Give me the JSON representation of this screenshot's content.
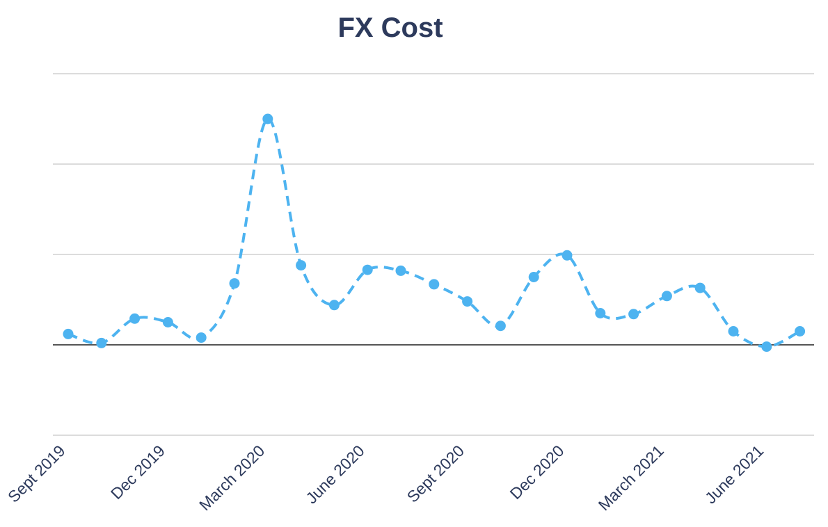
{
  "chart_data": {
    "type": "line",
    "title": "FX Cost",
    "x_tick_labels": [
      "Sept 2019",
      "Dec 2019",
      "March 2020",
      "June 2020",
      "Sept 2020",
      "Dec 2020",
      "March 2021",
      "June 2021"
    ],
    "x_tick_months": [
      0,
      3,
      6,
      9,
      12,
      15,
      18,
      21
    ],
    "x_months": [
      0,
      1,
      2,
      3,
      4,
      5,
      6,
      7,
      8,
      9,
      10,
      11,
      12,
      13,
      14,
      15,
      16,
      17,
      18,
      19,
      20,
      21,
      22
    ],
    "series": [
      {
        "values": [
          0.12,
          0.02,
          0.29,
          0.25,
          0.08,
          0.68,
          2.5,
          0.88,
          0.44,
          0.83,
          0.82,
          0.67,
          0.48,
          0.21,
          0.75,
          0.99,
          0.35,
          0.34,
          0.54,
          0.63,
          0.15,
          -0.02,
          0.15
        ],
        "color": "#4db3f0",
        "dashed": true
      }
    ],
    "ylim": [
      -1,
      3
    ],
    "y_gridlines": [
      -1,
      0,
      1,
      2,
      3
    ],
    "y_tick_labels_shown": false,
    "grid": true,
    "zero_line_color": "#555555",
    "grid_color": "#d0d0d0"
  }
}
